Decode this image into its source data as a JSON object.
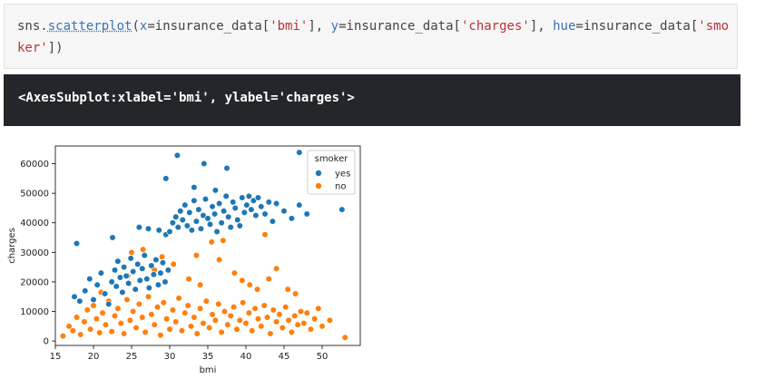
{
  "code": {
    "obj": "sns",
    "dot": ".",
    "func": "scatterplot",
    "p_open": "(",
    "arg_x": "x",
    "eq1": "=",
    "df1": "insurance_data[",
    "str_bmi": "'bmi'",
    "close1": "], ",
    "arg_y": "y",
    "eq2": "=",
    "df2": "insurance_data[",
    "str_charges": "'charges'",
    "close2": "], ",
    "arg_hue": "hue",
    "eq3": "=",
    "df3": "insurance_data[",
    "str_smoker": "'smoker'",
    "close3": "])"
  },
  "output": {
    "text": "<AxesSubplot:xlabel='bmi', ylabel='charges'>"
  },
  "chart_data": {
    "type": "scatter",
    "xlabel": "bmi",
    "ylabel": "charges",
    "xlim": [
      15,
      55
    ],
    "ylim": [
      -1500,
      66000
    ],
    "x_ticks": [
      15,
      20,
      25,
      30,
      35,
      40,
      45,
      50
    ],
    "y_ticks": [
      0,
      10000,
      20000,
      30000,
      40000,
      50000,
      60000
    ],
    "x_tick_labels": [
      "15",
      "20",
      "25",
      "30",
      "35",
      "40",
      "45",
      "50"
    ],
    "y_tick_labels": [
      "0",
      "10000",
      "20000",
      "30000",
      "40000",
      "50000",
      "60000"
    ],
    "grid": false,
    "legend": {
      "title": "smoker",
      "placement": "top-right"
    },
    "series": [
      {
        "name": "yes",
        "color": "#1f77b4",
        "points": [
          [
            17.5,
            15000
          ],
          [
            17.8,
            33000
          ],
          [
            18.2,
            13500
          ],
          [
            18.9,
            17000
          ],
          [
            19.5,
            21000
          ],
          [
            20.0,
            14000
          ],
          [
            20.5,
            19000
          ],
          [
            21.0,
            23000
          ],
          [
            21.5,
            16000
          ],
          [
            22.0,
            12500
          ],
          [
            22.4,
            20000
          ],
          [
            22.8,
            24000
          ],
          [
            23.0,
            18500
          ],
          [
            23.2,
            27000
          ],
          [
            23.5,
            21500
          ],
          [
            23.8,
            16500
          ],
          [
            24.0,
            25000
          ],
          [
            24.3,
            22000
          ],
          [
            24.6,
            19500
          ],
          [
            24.9,
            28000
          ],
          [
            25.2,
            23500
          ],
          [
            25.5,
            17500
          ],
          [
            25.8,
            26000
          ],
          [
            26.1,
            20500
          ],
          [
            26.4,
            24500
          ],
          [
            26.7,
            29000
          ],
          [
            27.0,
            21000
          ],
          [
            27.3,
            18000
          ],
          [
            27.6,
            25500
          ],
          [
            27.9,
            22500
          ],
          [
            28.2,
            27500
          ],
          [
            28.5,
            19000
          ],
          [
            28.8,
            23000
          ],
          [
            29.1,
            26500
          ],
          [
            29.4,
            20000
          ],
          [
            29.8,
            24000
          ],
          [
            22.5,
            35000
          ],
          [
            26.0,
            38500
          ],
          [
            27.2,
            38000
          ],
          [
            28.6,
            37500
          ],
          [
            29.5,
            36000
          ],
          [
            30.0,
            37000
          ],
          [
            30.4,
            40000
          ],
          [
            30.8,
            42000
          ],
          [
            31.1,
            38500
          ],
          [
            31.4,
            44000
          ],
          [
            31.7,
            41000
          ],
          [
            32.0,
            46000
          ],
          [
            32.3,
            39000
          ],
          [
            32.6,
            43500
          ],
          [
            32.9,
            37500
          ],
          [
            33.2,
            47500
          ],
          [
            33.5,
            40500
          ],
          [
            33.8,
            44500
          ],
          [
            34.1,
            38000
          ],
          [
            34.4,
            42500
          ],
          [
            34.7,
            48000
          ],
          [
            35.0,
            41500
          ],
          [
            35.3,
            39500
          ],
          [
            35.6,
            45500
          ],
          [
            35.9,
            43000
          ],
          [
            36.2,
            37000
          ],
          [
            36.5,
            46500
          ],
          [
            36.8,
            40000
          ],
          [
            37.1,
            44000
          ],
          [
            37.4,
            49000
          ],
          [
            37.7,
            42000
          ],
          [
            38.0,
            38500
          ],
          [
            38.3,
            47000
          ],
          [
            38.6,
            45000
          ],
          [
            38.9,
            41000
          ],
          [
            39.2,
            39000
          ],
          [
            39.5,
            48500
          ],
          [
            39.8,
            43500
          ],
          [
            40.1,
            46000
          ],
          [
            40.4,
            49000
          ],
          [
            40.7,
            44500
          ],
          [
            41.0,
            47500
          ],
          [
            41.3,
            42500
          ],
          [
            41.6,
            48500
          ],
          [
            42.0,
            45500
          ],
          [
            42.5,
            43000
          ],
          [
            43.0,
            47000
          ],
          [
            43.5,
            40500
          ],
          [
            44.0,
            46500
          ],
          [
            45.0,
            44000
          ],
          [
            46.0,
            41500
          ],
          [
            47.0,
            46000
          ],
          [
            48.0,
            43000
          ],
          [
            52.6,
            44500
          ],
          [
            31.0,
            62800
          ],
          [
            34.5,
            60000
          ],
          [
            37.5,
            58500
          ],
          [
            47.0,
            63800
          ],
          [
            33.2,
            52000
          ],
          [
            36.0,
            51000
          ],
          [
            29.5,
            55000
          ]
        ]
      },
      {
        "name": "no",
        "color": "#ff7f0e",
        "points": [
          [
            16.0,
            1700
          ],
          [
            16.8,
            5000
          ],
          [
            17.3,
            3500
          ],
          [
            17.8,
            8000
          ],
          [
            18.3,
            2200
          ],
          [
            18.8,
            6500
          ],
          [
            19.2,
            10500
          ],
          [
            19.6,
            4000
          ],
          [
            20.0,
            12000
          ],
          [
            20.4,
            7500
          ],
          [
            20.8,
            2800
          ],
          [
            21.2,
            9500
          ],
          [
            21.6,
            5500
          ],
          [
            22.0,
            13500
          ],
          [
            22.4,
            3200
          ],
          [
            22.8,
            8500
          ],
          [
            23.2,
            11000
          ],
          [
            23.6,
            6000
          ],
          [
            24.0,
            2500
          ],
          [
            24.4,
            14000
          ],
          [
            24.8,
            7000
          ],
          [
            25.2,
            10000
          ],
          [
            25.6,
            4500
          ],
          [
            26.0,
            12500
          ],
          [
            26.4,
            8000
          ],
          [
            26.8,
            3000
          ],
          [
            27.2,
            15000
          ],
          [
            27.6,
            9000
          ],
          [
            28.0,
            5500
          ],
          [
            28.4,
            11500
          ],
          [
            28.8,
            2000
          ],
          [
            29.2,
            13000
          ],
          [
            29.6,
            7500
          ],
          [
            30.0,
            4000
          ],
          [
            30.4,
            10500
          ],
          [
            30.8,
            6500
          ],
          [
            31.2,
            14500
          ],
          [
            31.6,
            3500
          ],
          [
            32.0,
            9500
          ],
          [
            32.4,
            12000
          ],
          [
            32.8,
            5000
          ],
          [
            33.2,
            8000
          ],
          [
            33.6,
            2500
          ],
          [
            34.0,
            11000
          ],
          [
            34.4,
            6000
          ],
          [
            34.8,
            13500
          ],
          [
            35.2,
            4500
          ],
          [
            35.6,
            9000
          ],
          [
            36.0,
            7000
          ],
          [
            36.4,
            12500
          ],
          [
            36.8,
            3000
          ],
          [
            37.2,
            10000
          ],
          [
            37.6,
            5500
          ],
          [
            38.0,
            8500
          ],
          [
            38.4,
            11500
          ],
          [
            38.8,
            4000
          ],
          [
            39.2,
            7000
          ],
          [
            39.6,
            13000
          ],
          [
            40.0,
            6000
          ],
          [
            40.4,
            9500
          ],
          [
            40.8,
            3500
          ],
          [
            41.2,
            11000
          ],
          [
            41.6,
            7500
          ],
          [
            42.0,
            5000
          ],
          [
            42.4,
            12000
          ],
          [
            42.8,
            8000
          ],
          [
            43.2,
            2500
          ],
          [
            43.6,
            10500
          ],
          [
            44.0,
            6500
          ],
          [
            44.4,
            9000
          ],
          [
            44.8,
            4500
          ],
          [
            45.2,
            11500
          ],
          [
            45.6,
            7000
          ],
          [
            46.0,
            3000
          ],
          [
            46.4,
            8500
          ],
          [
            46.8,
            5500
          ],
          [
            47.2,
            10000
          ],
          [
            47.6,
            6000
          ],
          [
            48.0,
            9500
          ],
          [
            48.5,
            4000
          ],
          [
            49.0,
            7500
          ],
          [
            49.5,
            11000
          ],
          [
            50.0,
            5000
          ],
          [
            51.0,
            7000
          ],
          [
            53.0,
            1200
          ],
          [
            21.0,
            16500
          ],
          [
            23.0,
            18500
          ],
          [
            24.5,
            22000
          ],
          [
            25.0,
            30000
          ],
          [
            26.5,
            31000
          ],
          [
            28.0,
            24000
          ],
          [
            29.0,
            28500
          ],
          [
            30.5,
            26000
          ],
          [
            32.5,
            21000
          ],
          [
            33.5,
            29000
          ],
          [
            34.0,
            19000
          ],
          [
            35.5,
            33500
          ],
          [
            36.5,
            27500
          ],
          [
            37.0,
            34000
          ],
          [
            38.5,
            23000
          ],
          [
            39.5,
            20500
          ],
          [
            40.5,
            19000
          ],
          [
            41.5,
            17500
          ],
          [
            42.5,
            36000
          ],
          [
            43.0,
            21000
          ],
          [
            44.0,
            24500
          ],
          [
            45.5,
            17500
          ],
          [
            46.5,
            16000
          ]
        ]
      }
    ]
  }
}
